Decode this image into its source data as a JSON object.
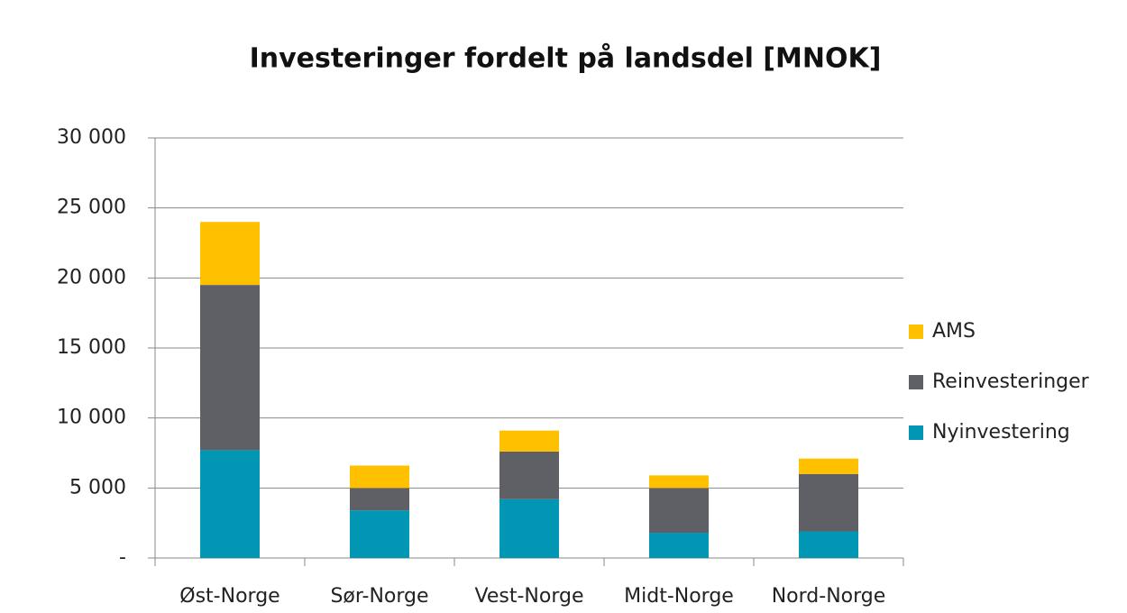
{
  "chart_data": {
    "type": "stacked_bar",
    "title": "Investeringer fordelt på landsdel [MNOK]",
    "categories": [
      "Øst-Norge",
      "Sør-Norge",
      "Vest-Norge",
      "Midt-Norge",
      "Nord-Norge"
    ],
    "series": [
      {
        "name": "Nyinvestering",
        "color": "#0096b4",
        "values": [
          7700,
          3400,
          4200,
          1800,
          1900
        ]
      },
      {
        "name": "Reinvesteringer",
        "color": "#5f6065",
        "values": [
          11800,
          1600,
          3400,
          3200,
          4100
        ]
      },
      {
        "name": "AMS",
        "color": "#ffc000",
        "values": [
          4500,
          1600,
          1500,
          900,
          1100
        ]
      }
    ],
    "ylim": [
      0,
      30000
    ],
    "yticks": [
      {
        "value": 0,
        "label": "-"
      },
      {
        "value": 5000,
        "label": "5 000"
      },
      {
        "value": 10000,
        "label": "10 000"
      },
      {
        "value": 15000,
        "label": "15 000"
      },
      {
        "value": 20000,
        "label": "20 000"
      },
      {
        "value": 25000,
        "label": "25 000"
      },
      {
        "value": 30000,
        "label": "30 000"
      }
    ],
    "grid": true,
    "legend": "right"
  }
}
